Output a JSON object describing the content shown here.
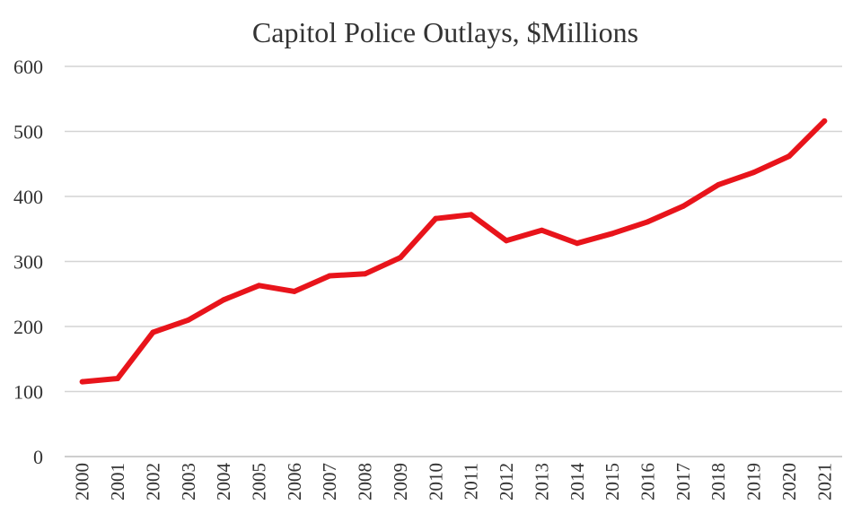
{
  "chart_data": {
    "type": "line",
    "title": "Capitol Police Outlays, $Millions",
    "xlabel": "",
    "ylabel": "",
    "categories": [
      "2000",
      "2001",
      "2002",
      "2003",
      "2004",
      "2005",
      "2006",
      "2007",
      "2008",
      "2009",
      "2010",
      "2011",
      "2012",
      "2013",
      "2014",
      "2015",
      "2016",
      "2017",
      "2018",
      "2019",
      "2020",
      "2021"
    ],
    "series": [
      {
        "values": [
          115,
          120,
          191,
          210,
          241,
          263,
          254,
          278,
          281,
          306,
          366,
          372,
          332,
          348,
          328,
          343,
          361,
          385,
          418,
          437,
          462,
          516
        ],
        "color": "#e8141b"
      }
    ],
    "ylim": [
      0,
      600
    ],
    "yticks": [
      "0",
      "100",
      "200",
      "300",
      "400",
      "500",
      "600"
    ],
    "grid": true,
    "legend": "none"
  }
}
